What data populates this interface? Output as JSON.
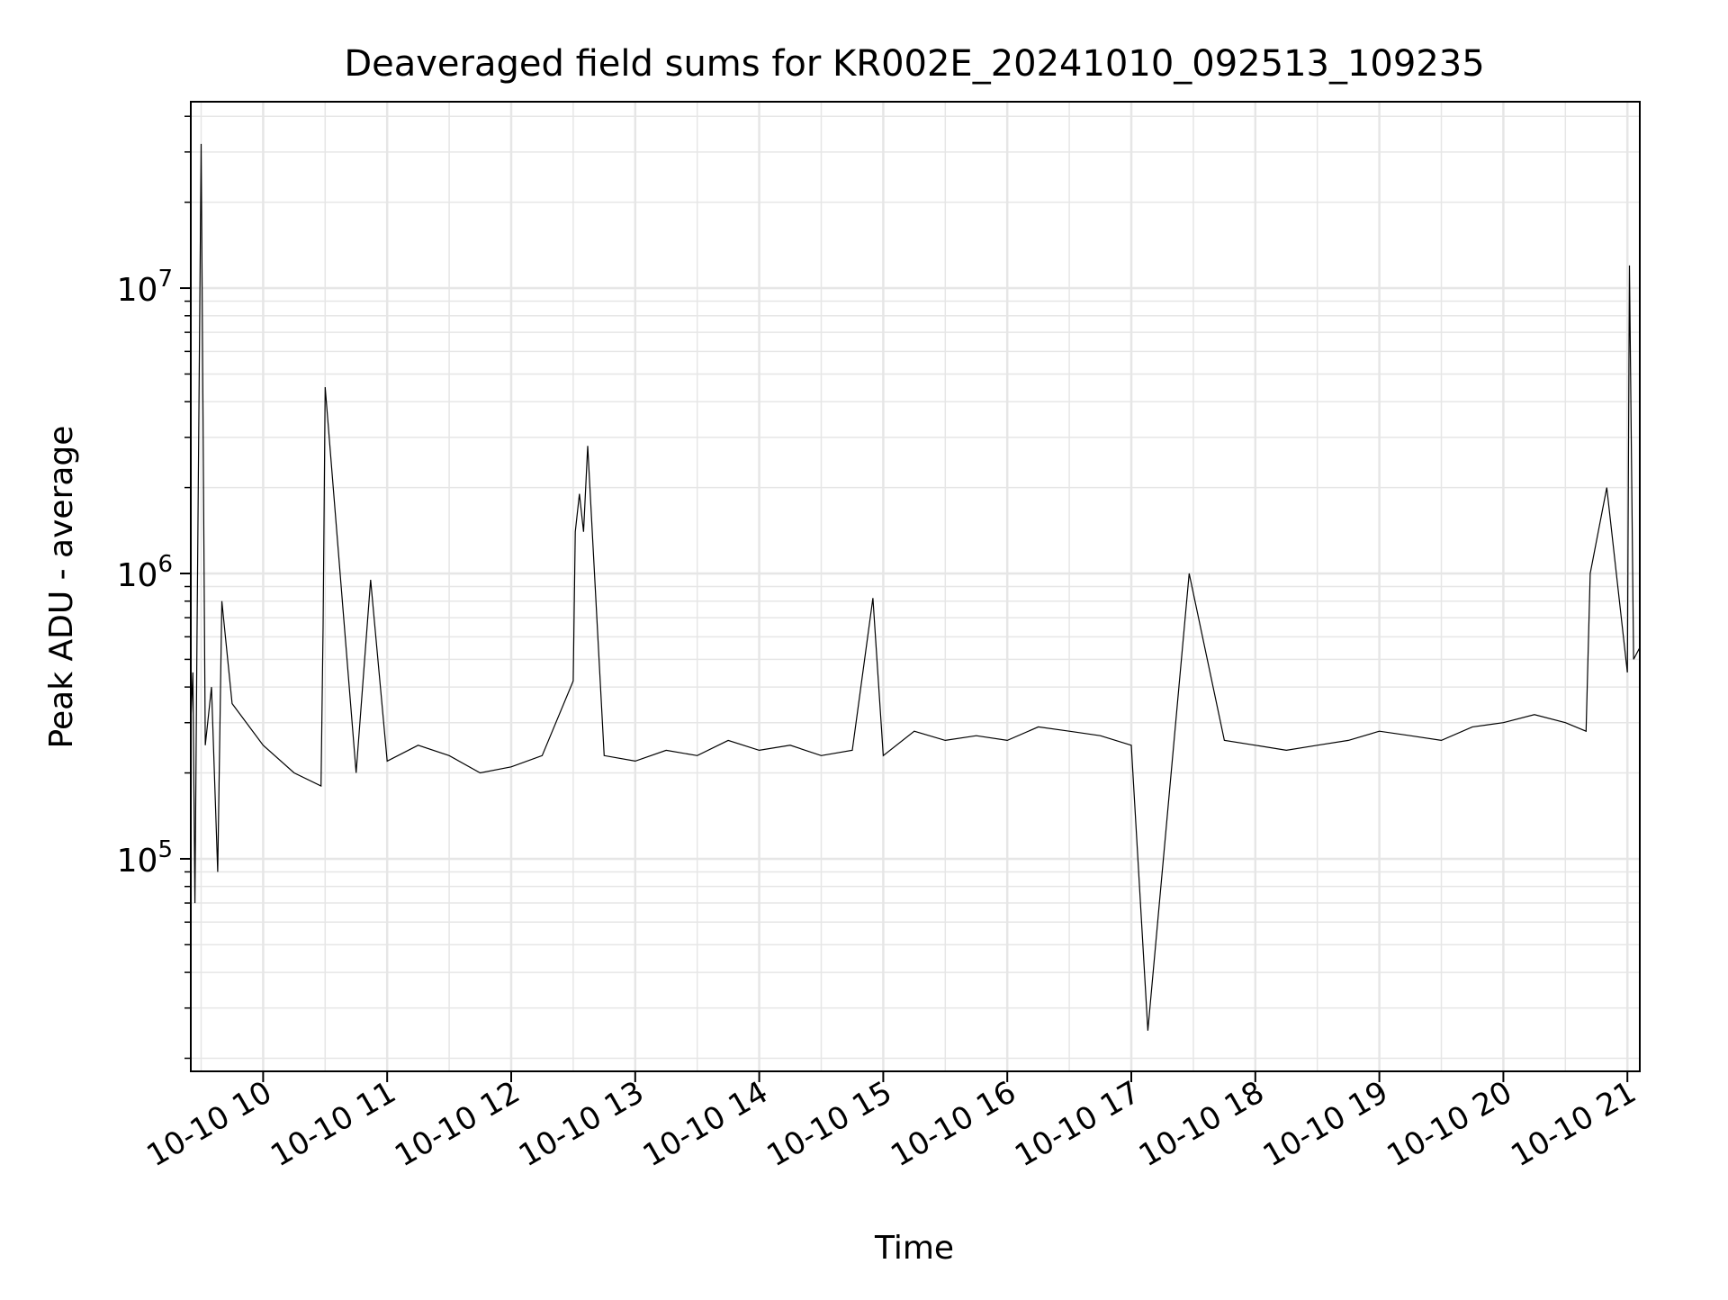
{
  "chart_data": {
    "type": "line",
    "title": "Deaveraged field sums for KR002E_20241010_092513_109235",
    "xlabel": "Time",
    "ylabel": "Peak ADU - average",
    "y_scale": "log",
    "xlim": [
      "2024-10-10 09:25",
      "2024-10-10 21:06"
    ],
    "ylim": [
      18000,
      45000000
    ],
    "x_ticks": [
      {
        "value": "2024-10-10 10:00",
        "label": "10-10 10"
      },
      {
        "value": "2024-10-10 11:00",
        "label": "10-10 11"
      },
      {
        "value": "2024-10-10 12:00",
        "label": "10-10 12"
      },
      {
        "value": "2024-10-10 13:00",
        "label": "10-10 13"
      },
      {
        "value": "2024-10-10 14:00",
        "label": "10-10 14"
      },
      {
        "value": "2024-10-10 15:00",
        "label": "10-10 15"
      },
      {
        "value": "2024-10-10 16:00",
        "label": "10-10 16"
      },
      {
        "value": "2024-10-10 17:00",
        "label": "10-10 17"
      },
      {
        "value": "2024-10-10 18:00",
        "label": "10-10 18"
      },
      {
        "value": "2024-10-10 19:00",
        "label": "10-10 19"
      },
      {
        "value": "2024-10-10 20:00",
        "label": "10-10 20"
      },
      {
        "value": "2024-10-10 21:00",
        "label": "10-10 21"
      }
    ],
    "y_ticks": [
      {
        "value": 100000,
        "label_base": "10",
        "label_exp": "5"
      },
      {
        "value": 1000000,
        "label_base": "10",
        "label_exp": "6"
      },
      {
        "value": 10000000,
        "label_base": "10",
        "label_exp": "7"
      }
    ],
    "grid": {
      "major": true,
      "minor": true
    },
    "legend": "none",
    "line_color": "#000000",
    "grid_color": "#e6e6e6",
    "series": [
      {
        "x": [
          "2024-10-10 09:25",
          "2024-10-10 09:26",
          "2024-10-10 09:27",
          "2024-10-10 09:28",
          "2024-10-10 09:30",
          "2024-10-10 09:32",
          "2024-10-10 09:35",
          "2024-10-10 09:38",
          "2024-10-10 09:40",
          "2024-10-10 09:45",
          "2024-10-10 10:00",
          "2024-10-10 10:15",
          "2024-10-10 10:28",
          "2024-10-10 10:29",
          "2024-10-10 10:30",
          "2024-10-10 10:45",
          "2024-10-10 10:52",
          "2024-10-10 11:00",
          "2024-10-10 11:15",
          "2024-10-10 11:30",
          "2024-10-10 11:45",
          "2024-10-10 12:00",
          "2024-10-10 12:15",
          "2024-10-10 12:30",
          "2024-10-10 12:31",
          "2024-10-10 12:33",
          "2024-10-10 12:35",
          "2024-10-10 12:37",
          "2024-10-10 12:45",
          "2024-10-10 13:00",
          "2024-10-10 13:15",
          "2024-10-10 13:30",
          "2024-10-10 13:45",
          "2024-10-10 14:00",
          "2024-10-10 14:15",
          "2024-10-10 14:30",
          "2024-10-10 14:45",
          "2024-10-10 14:55",
          "2024-10-10 15:00",
          "2024-10-10 15:15",
          "2024-10-10 15:30",
          "2024-10-10 15:45",
          "2024-10-10 16:00",
          "2024-10-10 16:15",
          "2024-10-10 16:30",
          "2024-10-10 16:45",
          "2024-10-10 17:00",
          "2024-10-10 17:08",
          "2024-10-10 17:28",
          "2024-10-10 17:45",
          "2024-10-10 18:00",
          "2024-10-10 18:15",
          "2024-10-10 18:30",
          "2024-10-10 18:45",
          "2024-10-10 19:00",
          "2024-10-10 19:15",
          "2024-10-10 19:30",
          "2024-10-10 19:45",
          "2024-10-10 20:00",
          "2024-10-10 20:15",
          "2024-10-10 20:30",
          "2024-10-10 20:40",
          "2024-10-10 20:42",
          "2024-10-10 20:50",
          "2024-10-10 21:00",
          "2024-10-10 21:01",
          "2024-10-10 21:03",
          "2024-10-10 21:06"
        ],
        "y": [
          300000,
          450000,
          70000,
          600000,
          32000000,
          250000,
          400000,
          90000,
          800000,
          350000,
          250000,
          200000,
          180000,
          650000,
          4500000,
          200000,
          950000,
          220000,
          250000,
          230000,
          200000,
          210000,
          230000,
          420000,
          1400000,
          1900000,
          1400000,
          2800000,
          230000,
          220000,
          240000,
          230000,
          260000,
          240000,
          250000,
          230000,
          240000,
          820000,
          230000,
          280000,
          260000,
          270000,
          260000,
          290000,
          280000,
          270000,
          250000,
          25000,
          1000000,
          260000,
          250000,
          240000,
          250000,
          260000,
          280000,
          270000,
          260000,
          290000,
          300000,
          320000,
          300000,
          280000,
          1000000,
          2000000,
          450000,
          12000000,
          500000,
          550000
        ]
      }
    ]
  }
}
